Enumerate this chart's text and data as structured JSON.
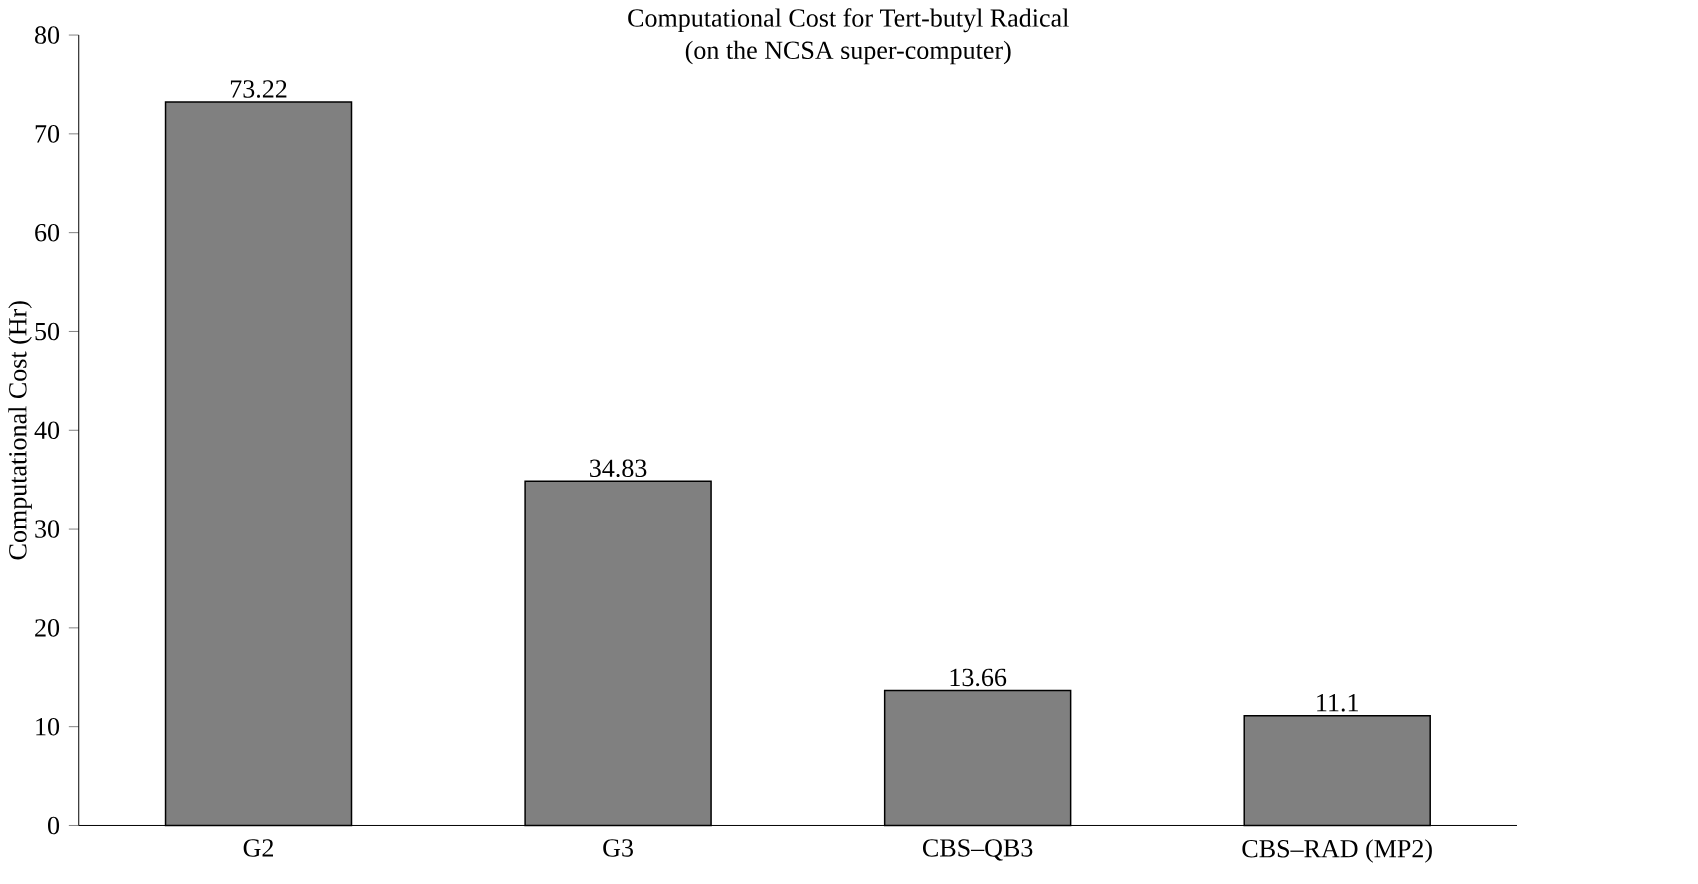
{
  "chart_data": {
    "type": "bar",
    "title": "Computational Cost for Tert-butyl Radical",
    "subtitle": "(on the NCSA super-computer)",
    "ylabel": "Computational Cost (Hr)",
    "categories": [
      "G2",
      "G3",
      "CBS–QB3",
      "CBS–RAD (MP2)"
    ],
    "values": [
      73.22,
      34.83,
      13.66,
      11.1
    ],
    "color": "#808080",
    "ylim": [
      0,
      80
    ],
    "yticks": [
      0,
      10,
      20,
      30,
      40,
      50,
      60,
      70,
      80
    ],
    "data_labels": true,
    "grid": false
  }
}
